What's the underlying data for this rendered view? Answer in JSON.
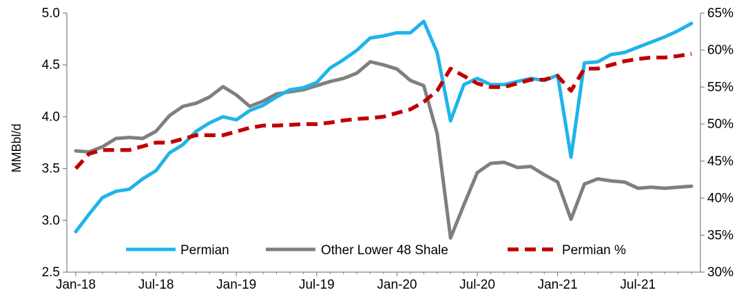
{
  "chart_data": {
    "type": "line",
    "title": "",
    "xlabel": "",
    "ylabel": "MMBbl/d",
    "y2label": "",
    "ylim": [
      2.5,
      5.0
    ],
    "y2lim": [
      0.3,
      0.65
    ],
    "yticks": [
      "2.5",
      "3.0",
      "3.5",
      "4.0",
      "4.5",
      "5.0"
    ],
    "y2ticks": [
      "30%",
      "35%",
      "40%",
      "45%",
      "50%",
      "55%",
      "60%",
      "65%"
    ],
    "xticks": [
      "Jan-18",
      "Jul-18",
      "Jan-19",
      "Jul-19",
      "Jan-20",
      "Jul-20",
      "Jan-21",
      "Jul-21"
    ],
    "x": [
      "2018-01",
      "2018-02",
      "2018-03",
      "2018-04",
      "2018-05",
      "2018-06",
      "2018-07",
      "2018-08",
      "2018-09",
      "2018-10",
      "2018-11",
      "2018-12",
      "2019-01",
      "2019-02",
      "2019-03",
      "2019-04",
      "2019-05",
      "2019-06",
      "2019-07",
      "2019-08",
      "2019-09",
      "2019-10",
      "2019-11",
      "2019-12",
      "2020-01",
      "2020-02",
      "2020-03",
      "2020-04",
      "2020-05",
      "2020-06",
      "2020-07",
      "2020-08",
      "2020-09",
      "2020-10",
      "2020-11",
      "2020-12",
      "2021-01",
      "2021-02",
      "2021-03",
      "2021-04",
      "2021-05",
      "2021-06",
      "2021-07",
      "2021-08",
      "2021-09",
      "2021-10",
      "2021-11"
    ],
    "grid": false,
    "legend_position": "bottom-inside",
    "series": [
      {
        "name": "Permian",
        "axis": "left",
        "color": "#1fb4ea",
        "style": "solid",
        "values": [
          2.89,
          3.06,
          3.22,
          3.28,
          3.3,
          3.4,
          3.48,
          3.65,
          3.73,
          3.86,
          3.94,
          4.0,
          3.97,
          4.06,
          4.11,
          4.19,
          4.26,
          4.28,
          4.33,
          4.47,
          4.55,
          4.64,
          4.76,
          4.78,
          4.81,
          4.81,
          4.92,
          4.62,
          3.96,
          4.31,
          4.37,
          4.31,
          4.31,
          4.34,
          4.37,
          4.35,
          4.4,
          3.61,
          4.52,
          4.53,
          4.6,
          4.62,
          4.67,
          4.72,
          4.77,
          4.83,
          4.9
        ]
      },
      {
        "name": "Other Lower 48 Shale",
        "axis": "left",
        "color": "#7f7f7f",
        "style": "solid",
        "values": [
          3.67,
          3.66,
          3.71,
          3.79,
          3.8,
          3.79,
          3.86,
          4.01,
          4.1,
          4.13,
          4.19,
          4.29,
          4.21,
          4.1,
          4.15,
          4.22,
          4.24,
          4.26,
          4.3,
          4.34,
          4.37,
          4.42,
          4.53,
          4.5,
          4.46,
          4.35,
          4.3,
          3.84,
          2.83,
          3.15,
          3.46,
          3.55,
          3.56,
          3.51,
          3.52,
          3.44,
          3.37,
          3.01,
          3.35,
          3.4,
          3.38,
          3.37,
          3.31,
          3.32,
          3.31,
          3.32,
          3.33
        ]
      },
      {
        "name": "Permian %",
        "axis": "right",
        "color": "#c00000",
        "style": "dashed",
        "values": [
          0.44,
          0.46,
          0.465,
          0.465,
          0.465,
          0.47,
          0.475,
          0.475,
          0.48,
          0.485,
          0.485,
          0.485,
          0.49,
          0.495,
          0.498,
          0.498,
          0.499,
          0.5,
          0.5,
          0.502,
          0.505,
          0.507,
          0.508,
          0.51,
          0.515,
          0.52,
          0.53,
          0.545,
          0.575,
          0.565,
          0.555,
          0.55,
          0.55,
          0.555,
          0.56,
          0.56,
          0.565,
          0.545,
          0.575,
          0.575,
          0.58,
          0.585,
          0.588,
          0.59,
          0.59,
          0.592,
          0.595
        ]
      }
    ]
  }
}
